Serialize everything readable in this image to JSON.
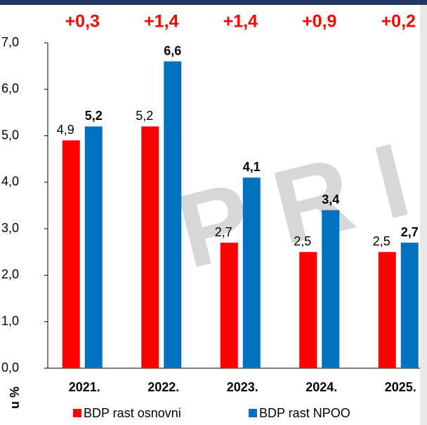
{
  "chart_data": {
    "type": "bar",
    "categories": [
      "2021.",
      "2022.",
      "2023.",
      "2024.",
      "2025."
    ],
    "series": [
      {
        "name": "BDP rast osnovni",
        "color": "#ff0000",
        "values": [
          4.9,
          5.2,
          2.7,
          2.5,
          2.5
        ],
        "value_labels": [
          "4,9",
          "5,2",
          "2,7",
          "2,5",
          "2,5"
        ]
      },
      {
        "name": "BDP rast NPOO",
        "color": "#0070c0",
        "values": [
          5.2,
          6.6,
          4.1,
          3.4,
          2.7
        ],
        "value_labels": [
          "5,2",
          "6,6",
          "4,1",
          "3,4",
          "2,7"
        ]
      }
    ],
    "differences": {
      "color": "#ff0000",
      "values": [
        0.3,
        1.4,
        1.4,
        0.9,
        0.2
      ],
      "value_labels": [
        "+0,3",
        "+1,4",
        "+1,4",
        "+0,9",
        "+0,2"
      ]
    },
    "y_axis_label": "u %",
    "watermark": "PRI",
    "ylim": [
      0,
      7
    ],
    "yticks": [
      {
        "value": 0,
        "label": "0,0"
      },
      {
        "value": 1,
        "label": "1,0"
      },
      {
        "value": 2,
        "label": "2,0"
      },
      {
        "value": 3,
        "label": "3,0"
      },
      {
        "value": 4,
        "label": "4,0"
      },
      {
        "value": 5,
        "label": "5,0"
      },
      {
        "value": 6,
        "label": "6,0"
      },
      {
        "value": 7,
        "label": "7,0"
      }
    ],
    "grid": false,
    "legend": "bottom"
  }
}
